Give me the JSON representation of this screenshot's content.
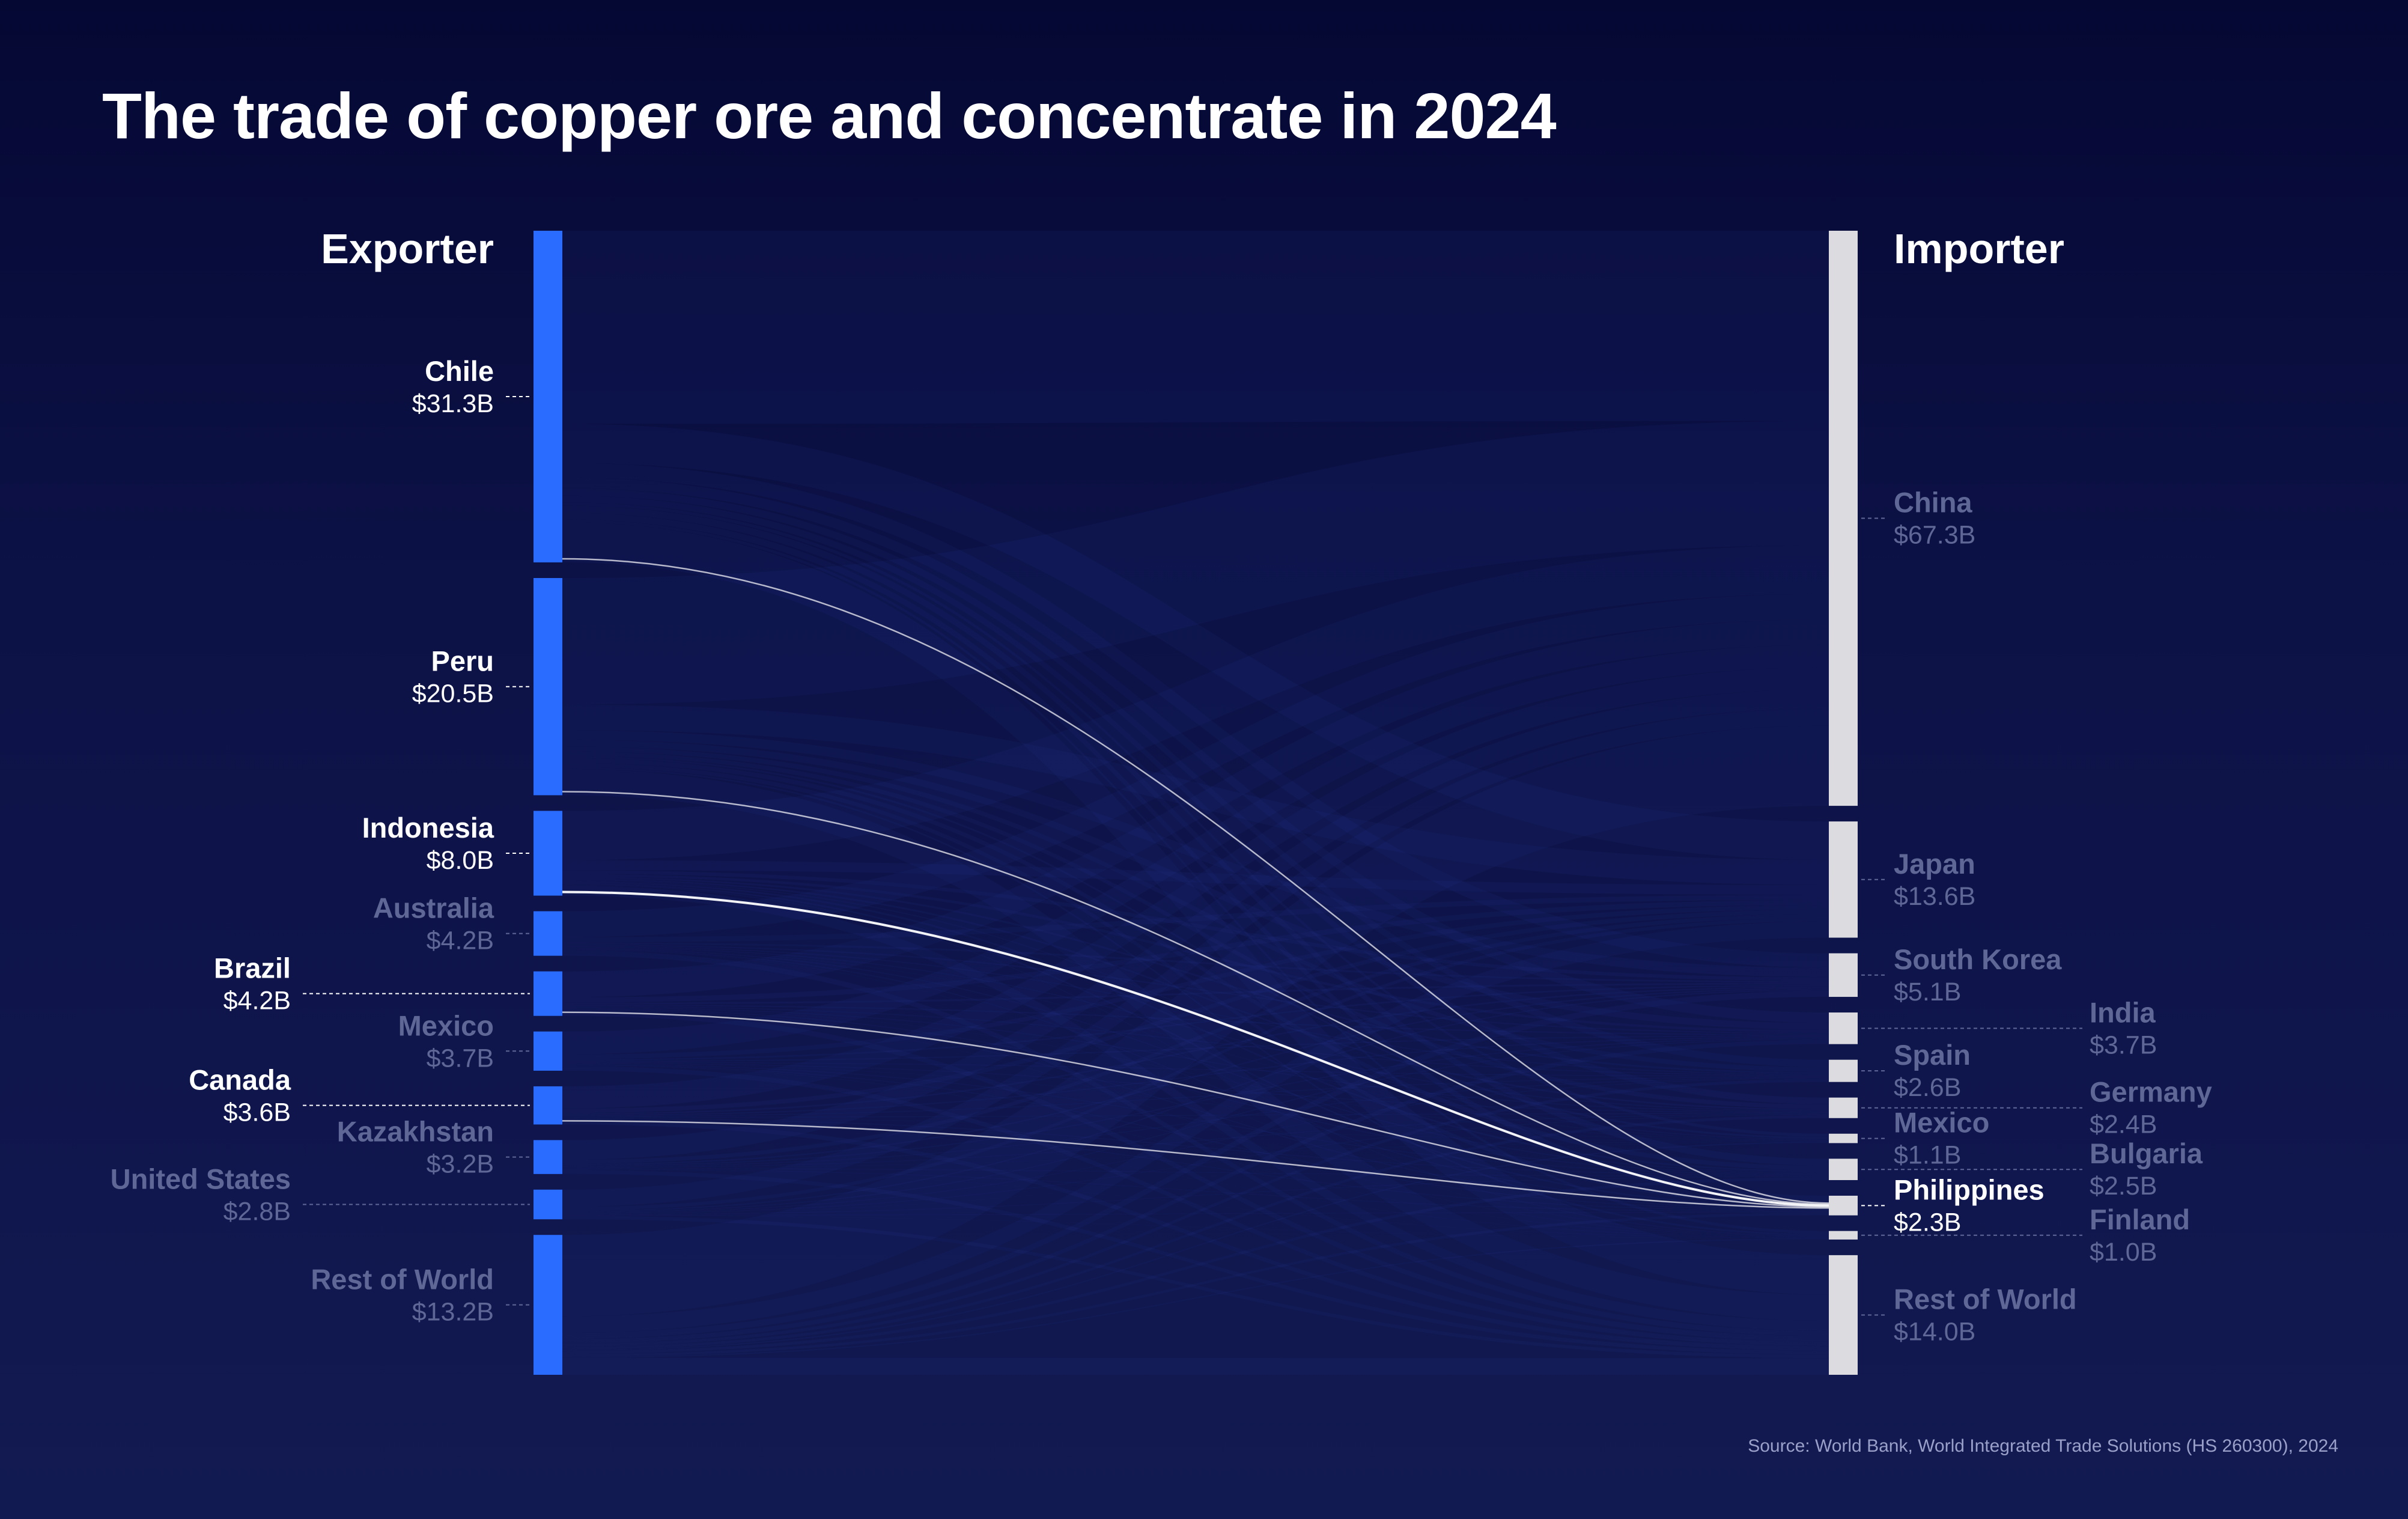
{
  "title": "The trade of copper ore and concentrate in 2024",
  "source": "Source: World Bank, World Integrated Trade Solutions (HS 260300), 2024",
  "colors": {
    "exporter_bar": "#2a6cff",
    "importer_bar": "#dcdce0",
    "highlight_text": "#ffffff",
    "muted_text": "#5f6796",
    "ribbon": "#2c3a9e",
    "highlight_flow": "#ffffff"
  },
  "chart_data": {
    "type": "sankey",
    "left_header": "Exporter",
    "right_header": "Importer",
    "highlighted_importer": "Philippines",
    "exporters": [
      {
        "name": "Chile",
        "value_label": "$31.3B",
        "value": 31.3,
        "highlight": true
      },
      {
        "name": "Peru",
        "value_label": "$20.5B",
        "value": 20.5,
        "highlight": true
      },
      {
        "name": "Indonesia",
        "value_label": "$8.0B",
        "value": 8.0,
        "highlight": true
      },
      {
        "name": "Australia",
        "value_label": "$4.2B",
        "value": 4.2,
        "highlight": false
      },
      {
        "name": "Brazil",
        "value_label": "$4.2B",
        "value": 4.2,
        "highlight": true
      },
      {
        "name": "Mexico",
        "value_label": "$3.7B",
        "value": 3.7,
        "highlight": false
      },
      {
        "name": "Canada",
        "value_label": "$3.6B",
        "value": 3.6,
        "highlight": true
      },
      {
        "name": "Kazakhstan",
        "value_label": "$3.2B",
        "value": 3.2,
        "highlight": false
      },
      {
        "name": "United States",
        "value_label": "$2.8B",
        "value": 2.8,
        "highlight": false
      },
      {
        "name": "Rest of World",
        "value_label": "$13.2B",
        "value": 13.2,
        "highlight": false
      }
    ],
    "importers": [
      {
        "name": "China",
        "value_label": "$67.3B",
        "value": 67.3,
        "highlight": false
      },
      {
        "name": "Japan",
        "value_label": "$13.6B",
        "value": 13.6,
        "highlight": false
      },
      {
        "name": "South Korea",
        "value_label": "$5.1B",
        "value": 5.1,
        "highlight": false
      },
      {
        "name": "India",
        "value_label": "$3.7B",
        "value": 3.7,
        "highlight": false
      },
      {
        "name": "Spain",
        "value_label": "$2.6B",
        "value": 2.6,
        "highlight": false
      },
      {
        "name": "Germany",
        "value_label": "$2.4B",
        "value": 2.4,
        "highlight": false
      },
      {
        "name": "Mexico",
        "value_label": "$1.1B",
        "value": 1.1,
        "highlight": false
      },
      {
        "name": "Bulgaria",
        "value_label": "$2.5B",
        "value": 2.5,
        "highlight": false
      },
      {
        "name": "Philippines",
        "value_label": "$2.3B",
        "value": 2.3,
        "highlight": true
      },
      {
        "name": "Finland",
        "value_label": "$1.0B",
        "value": 1.0,
        "highlight": false
      },
      {
        "name": "Rest of World",
        "value_label": "$14.0B",
        "value": 14.0,
        "highlight": false
      }
    ],
    "highlighted_flows": [
      {
        "from": "Chile",
        "to": "Philippines"
      },
      {
        "from": "Peru",
        "to": "Philippines"
      },
      {
        "from": "Indonesia",
        "to": "Philippines"
      },
      {
        "from": "Brazil",
        "to": "Philippines"
      },
      {
        "from": "Canada",
        "to": "Philippines"
      }
    ]
  }
}
